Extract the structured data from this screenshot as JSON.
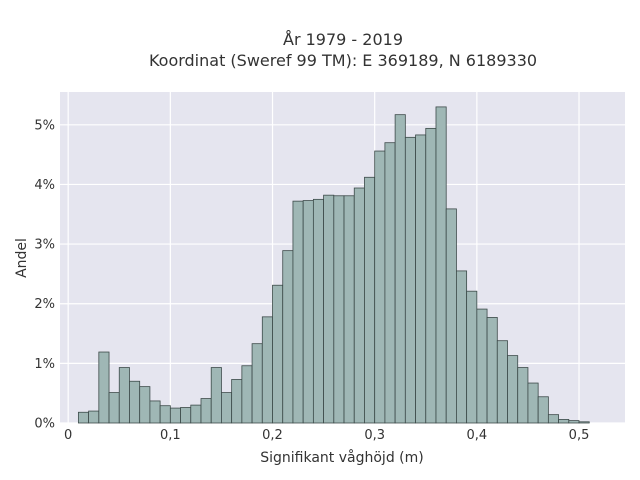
{
  "chart_data": {
    "type": "bar",
    "title_lines": [
      "År 1979 - 2019",
      "Koordinat (Sweref 99 TM): E 369189, N 6189330"
    ],
    "xlabel": "Signifikant våghöjd (m)",
    "ylabel": "Andel",
    "xlim": [
      -0.008,
      0.545
    ],
    "ylim": [
      0,
      5.55
    ],
    "bin_start": 0.01,
    "bin_width": 0.01,
    "values": [
      0.18,
      0.2,
      1.19,
      0.51,
      0.93,
      0.7,
      0.61,
      0.37,
      0.29,
      0.25,
      0.26,
      0.3,
      0.41,
      0.93,
      0.51,
      0.73,
      0.96,
      1.33,
      1.78,
      2.31,
      2.89,
      3.72,
      3.73,
      3.75,
      3.82,
      3.81,
      3.81,
      3.94,
      4.12,
      4.56,
      4.7,
      5.17,
      4.79,
      4.83,
      4.94,
      5.3,
      3.59,
      2.55,
      2.21,
      1.91,
      1.77,
      1.38,
      1.13,
      0.93,
      0.67,
      0.44,
      0.14,
      0.06,
      0.04,
      0.02
    ],
    "x_ticks": [
      {
        "value": 0.0,
        "label": "0"
      },
      {
        "value": 0.1,
        "label": "0,1"
      },
      {
        "value": 0.2,
        "label": "0,2"
      },
      {
        "value": 0.3,
        "label": "0,3"
      },
      {
        "value": 0.4,
        "label": "0,4"
      },
      {
        "value": 0.5,
        "label": "0,5"
      }
    ],
    "y_ticks": [
      {
        "value": 0,
        "label": "0%"
      },
      {
        "value": 1,
        "label": "1%"
      },
      {
        "value": 2,
        "label": "2%"
      },
      {
        "value": 3,
        "label": "3%"
      },
      {
        "value": 4,
        "label": "4%"
      },
      {
        "value": 5,
        "label": "5%"
      }
    ],
    "grid": true,
    "colors": {
      "plot_background": "#e5e5ef",
      "bar_fill": "#9fb7b5",
      "bar_edge": "#3c4a49",
      "grid": "#ffffff"
    }
  }
}
